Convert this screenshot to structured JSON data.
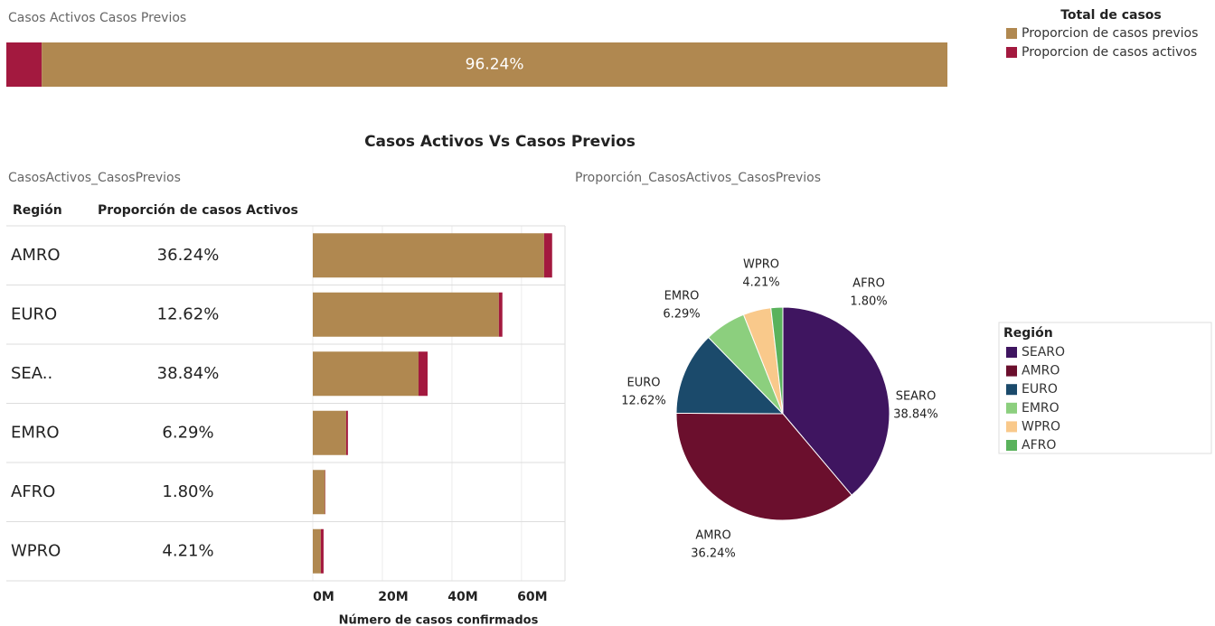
{
  "dashboard_title": "Casos Activos Vs Casos Previos",
  "chart_data": [
    {
      "type": "stacked_bar",
      "title": "Casos Activos Casos Previos",
      "legend_title": "Total de casos",
      "series": [
        {
          "name": "Proporcion de casos previos",
          "color": "#b08850",
          "values": [
            96.24
          ],
          "value_labels": [
            "96.24%"
          ]
        },
        {
          "name": "Proporcion de casos activos",
          "color": "#a3193f",
          "values": [
            3.76
          ]
        }
      ]
    },
    {
      "type": "table_bar",
      "title": "CasosActivos_CasosPrevios",
      "columns": [
        "Región",
        "Proporción de casos Activos"
      ],
      "categories": [
        "AMRO",
        "EURO",
        "SEA..",
        "EMRO",
        "AFRO",
        "WPRO"
      ],
      "proportions": [
        "36.24%",
        "12.62%",
        "38.84%",
        "6.29%",
        "1.80%",
        "4.21%"
      ],
      "series": [
        {
          "color": "#b08850",
          "values": [
            66.5,
            53.5,
            30.4,
            9.6,
            3.5,
            2.3
          ]
        },
        {
          "color": "#a3193f",
          "values": [
            2.3,
            1.0,
            2.6,
            0.5,
            0.1,
            0.8
          ]
        }
      ],
      "xlim": [
        0,
        72.5
      ],
      "xticks": [
        {
          "value": 0,
          "label": "0M"
        },
        {
          "value": 20,
          "label": "20M"
        },
        {
          "value": 40,
          "label": "40M"
        },
        {
          "value": 60,
          "label": "60M"
        }
      ],
      "xlabel": "Número de casos confirmados",
      "grid": true
    },
    {
      "type": "pie",
      "title": "Proporción_CasosActivos_CasosPrevios",
      "legend_title": "Región",
      "categories": [
        "SEARO",
        "AMRO",
        "EURO",
        "EMRO",
        "WPRO",
        "AFRO"
      ],
      "values": [
        38.84,
        36.24,
        12.62,
        6.29,
        4.21,
        1.8
      ],
      "value_labels": [
        "38.84%",
        "36.24%",
        "12.62%",
        "6.29%",
        "4.21%",
        "1.80%"
      ],
      "colors": [
        "#3f1560",
        "#6b0f2d",
        "#1b4a6b",
        "#8ccf7e",
        "#f9c98b",
        "#5ab25c"
      ]
    }
  ]
}
